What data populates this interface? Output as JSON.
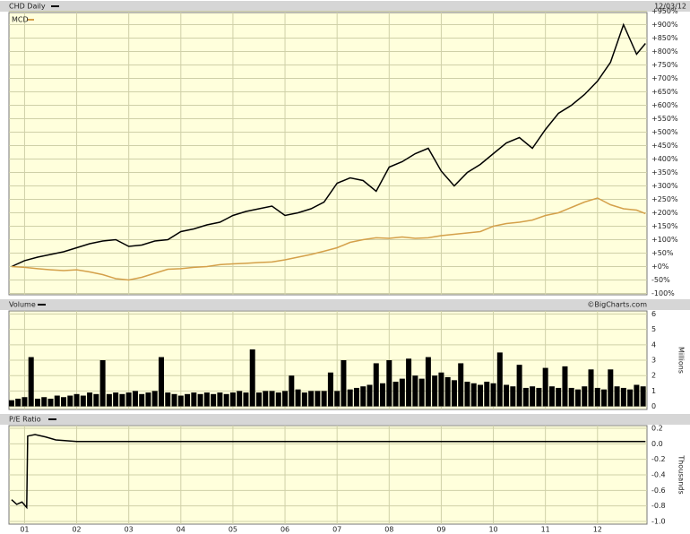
{
  "chart_data": [
    {
      "type": "line",
      "date": "12/03/12",
      "x": [
        2000.75,
        2001,
        2001.25,
        2001.5,
        2001.75,
        2002,
        2002.25,
        2002.5,
        2002.75,
        2003,
        2003.25,
        2003.5,
        2003.75,
        2004,
        2004.25,
        2004.5,
        2004.75,
        2005,
        2005.25,
        2005.5,
        2005.75,
        2006,
        2006.25,
        2006.5,
        2006.75,
        2007,
        2007.25,
        2007.5,
        2007.75,
        2008,
        2008.25,
        2008.5,
        2008.75,
        2009,
        2009.25,
        2009.5,
        2009.75,
        2010,
        2010.25,
        2010.5,
        2010.75,
        2011,
        2011.25,
        2011.5,
        2011.75,
        2012,
        2012.25,
        2012.5,
        2012.75,
        2012.92
      ],
      "series": [
        {
          "name": "CHD Daily",
          "color": "#000000",
          "values": [
            0,
            22,
            35,
            45,
            55,
            70,
            85,
            95,
            100,
            75,
            80,
            95,
            100,
            130,
            140,
            155,
            165,
            190,
            205,
            215,
            225,
            190,
            200,
            215,
            240,
            310,
            330,
            320,
            280,
            370,
            390,
            420,
            440,
            355,
            300,
            350,
            380,
            420,
            460,
            480,
            440,
            510,
            570,
            600,
            640,
            690,
            760,
            900,
            790,
            830
          ]
        },
        {
          "name": "MCD",
          "color": "#d4a04a",
          "values": [
            0,
            -3,
            -8,
            -12,
            -15,
            -12,
            -20,
            -30,
            -45,
            -50,
            -40,
            -25,
            -10,
            -8,
            -3,
            0,
            7,
            10,
            12,
            15,
            17,
            25,
            35,
            45,
            57,
            70,
            90,
            100,
            107,
            105,
            110,
            105,
            107,
            115,
            120,
            125,
            130,
            150,
            160,
            165,
            173,
            190,
            200,
            220,
            240,
            255,
            230,
            215,
            210,
            197
          ]
        }
      ],
      "xlim": [
        2000.7,
        2012.95
      ],
      "ylim": [
        -105,
        945
      ],
      "yticks": [
        {
          "value": 950,
          "label": "+950%"
        },
        {
          "value": 900,
          "label": "+900%"
        },
        {
          "value": 850,
          "label": "+850%"
        },
        {
          "value": 800,
          "label": "+800%"
        },
        {
          "value": 750,
          "label": "+750%"
        },
        {
          "value": 700,
          "label": "+700%"
        },
        {
          "value": 650,
          "label": "+650%"
        },
        {
          "value": 600,
          "label": "+600%"
        },
        {
          "value": 550,
          "label": "+550%"
        },
        {
          "value": 500,
          "label": "+500%"
        },
        {
          "value": 450,
          "label": "+450%"
        },
        {
          "value": 400,
          "label": "+400%"
        },
        {
          "value": 350,
          "label": "+350%"
        },
        {
          "value": 300,
          "label": "+300%"
        },
        {
          "value": 250,
          "label": "+250%"
        },
        {
          "value": 200,
          "label": "+200%"
        },
        {
          "value": 150,
          "label": "+150%"
        },
        {
          "value": 100,
          "label": "+100%"
        },
        {
          "value": 50,
          "label": "+50%"
        },
        {
          "value": 0,
          "label": "+0%"
        },
        {
          "value": -50,
          "label": "-50%"
        },
        {
          "value": -100,
          "label": "-100%"
        }
      ],
      "grid": true
    },
    {
      "type": "bar",
      "title": "Volume",
      "y_label": "Millions",
      "credit": "©BigCharts.com",
      "color": "#000000",
      "x": [
        2000.75,
        2000.875,
        2001,
        2001.125,
        2001.25,
        2001.375,
        2001.5,
        2001.625,
        2001.75,
        2001.875,
        2002,
        2002.125,
        2002.25,
        2002.375,
        2002.5,
        2002.625,
        2002.75,
        2002.875,
        2003,
        2003.125,
        2003.25,
        2003.375,
        2003.5,
        2003.625,
        2003.75,
        2003.875,
        2004,
        2004.125,
        2004.25,
        2004.375,
        2004.5,
        2004.625,
        2004.75,
        2004.875,
        2005,
        2005.125,
        2005.25,
        2005.375,
        2005.5,
        2005.625,
        2005.75,
        2005.875,
        2006,
        2006.125,
        2006.25,
        2006.375,
        2006.5,
        2006.625,
        2006.75,
        2006.875,
        2007,
        2007.125,
        2007.25,
        2007.375,
        2007.5,
        2007.625,
        2007.75,
        2007.875,
        2008,
        2008.125,
        2008.25,
        2008.375,
        2008.5,
        2008.625,
        2008.75,
        2008.875,
        2009,
        2009.125,
        2009.25,
        2009.375,
        2009.5,
        2009.625,
        2009.75,
        2009.875,
        2010,
        2010.125,
        2010.25,
        2010.375,
        2010.5,
        2010.625,
        2010.75,
        2010.875,
        2011,
        2011.125,
        2011.25,
        2011.375,
        2011.5,
        2011.625,
        2011.75,
        2011.875,
        2012,
        2012.125,
        2012.25,
        2012.375,
        2012.5,
        2012.625,
        2012.75,
        2012.875
      ],
      "values": [
        0.4,
        0.5,
        0.6,
        3.2,
        0.5,
        0.6,
        0.5,
        0.7,
        0.6,
        0.7,
        0.8,
        0.7,
        0.9,
        0.8,
        3.0,
        0.8,
        0.9,
        0.8,
        0.9,
        1.0,
        0.8,
        0.9,
        1.0,
        3.2,
        0.9,
        0.8,
        0.7,
        0.8,
        0.9,
        0.8,
        0.9,
        0.8,
        0.9,
        0.8,
        0.9,
        1.0,
        0.9,
        3.7,
        0.9,
        1.0,
        1.0,
        0.9,
        1.0,
        2.0,
        1.1,
        0.9,
        1.0,
        1.0,
        1.0,
        2.2,
        1.0,
        3.0,
        1.1,
        1.2,
        1.3,
        1.4,
        2.8,
        1.5,
        3.0,
        1.6,
        1.8,
        3.1,
        2.0,
        1.8,
        3.2,
        2.0,
        2.2,
        1.9,
        1.7,
        2.8,
        1.6,
        1.5,
        1.4,
        1.6,
        1.5,
        3.5,
        1.4,
        1.3,
        2.7,
        1.2,
        1.3,
        1.2,
        2.5,
        1.3,
        1.2,
        2.6,
        1.2,
        1.1,
        1.3,
        2.4,
        1.2,
        1.1,
        2.4,
        1.3,
        1.2,
        1.1,
        1.4,
        1.3
      ],
      "xlim": [
        2000.7,
        2012.95
      ],
      "ylim": [
        -0.2,
        6.2
      ],
      "yticks": [
        0,
        1,
        2,
        3,
        4,
        5,
        6
      ],
      "grid": true
    },
    {
      "type": "line",
      "title": "P/E Ratio",
      "y_label": "Thousands",
      "x": [
        2000.75,
        2000.85,
        2000.95,
        2001.04,
        2001.06,
        2001.2,
        2001.4,
        2001.6,
        2002,
        2004,
        2006,
        2008,
        2010,
        2012,
        2012.92
      ],
      "series": [
        {
          "color": "#000000",
          "values": [
            -0.72,
            -0.78,
            -0.75,
            -0.82,
            0.1,
            0.12,
            0.09,
            0.05,
            0.03,
            0.03,
            0.03,
            0.03,
            0.03,
            0.03,
            0.03
          ]
        }
      ],
      "xlim": [
        2000.7,
        2012.95
      ],
      "ylim": [
        -1.035,
        0.235
      ],
      "yticks": [
        0.2,
        {
          "value": 0,
          "label": "0.0"
        },
        -0.2,
        -0.4,
        -0.6,
        -0.8,
        {
          "value": -1,
          "label": "-1.0"
        }
      ],
      "xticks": [
        {
          "value": 2001,
          "label": "01"
        },
        {
          "value": 2002,
          "label": "02"
        },
        {
          "value": 2003,
          "label": "03"
        },
        {
          "value": 2004,
          "label": "04"
        },
        {
          "value": 2005,
          "label": "05"
        },
        {
          "value": 2006,
          "label": "06"
        },
        {
          "value": 2007,
          "label": "07"
        },
        {
          "value": 2008,
          "label": "08"
        },
        {
          "value": 2009,
          "label": "09"
        },
        {
          "value": 2010,
          "label": "10"
        },
        {
          "value": 2011,
          "label": "11"
        },
        {
          "value": 2012,
          "label": "12"
        }
      ],
      "grid": true
    }
  ]
}
